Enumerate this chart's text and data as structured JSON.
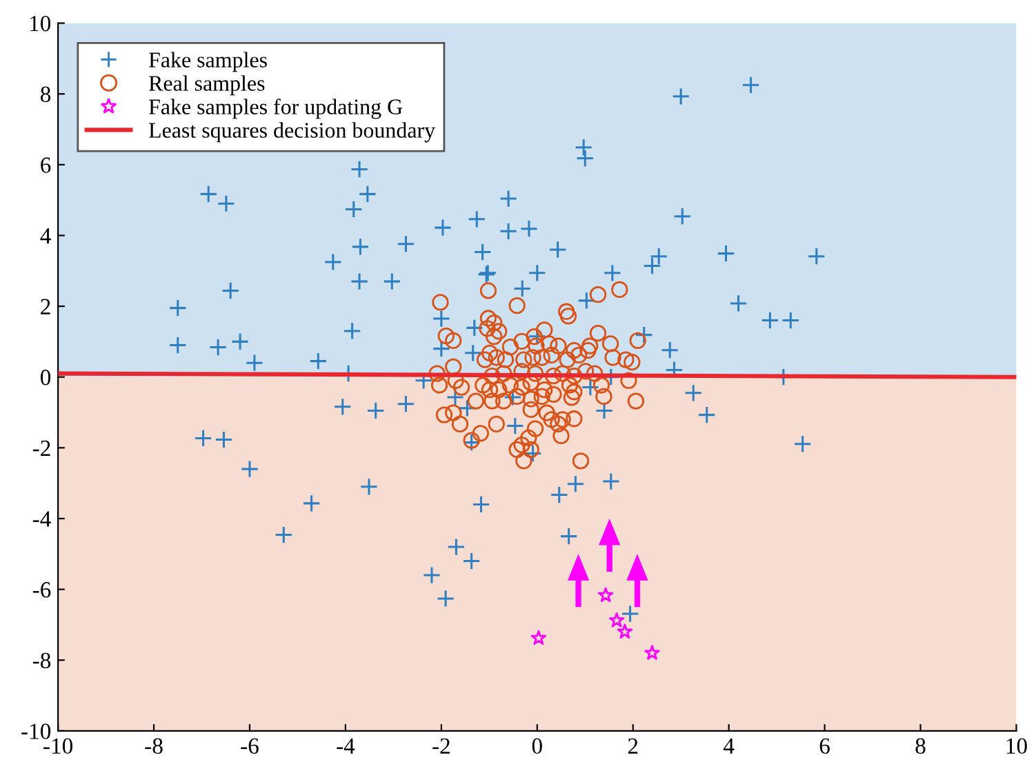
{
  "chart_data": {
    "type": "scatter",
    "xlim": [
      -10,
      10
    ],
    "ylim": [
      -10,
      10
    ],
    "xticks": [
      -10,
      -8,
      -6,
      -4,
      -2,
      0,
      2,
      4,
      6,
      8,
      10
    ],
    "yticks": [
      -10,
      -8,
      -6,
      -4,
      -2,
      0,
      2,
      4,
      6,
      8,
      10
    ],
    "grid": false,
    "legend": "top left",
    "bands": [
      {
        "axis": "y",
        "from": 0,
        "to": 10,
        "color": "#cde1f1"
      },
      {
        "axis": "y",
        "from": -10,
        "to": 0,
        "color": "#f7dcd1"
      }
    ],
    "series": [
      {
        "name": "Fake samples",
        "marker": "cross",
        "color": "#2f7fc1",
        "x": [
          -7.5,
          -7.5,
          -6.86,
          -6.49,
          -6.4,
          -6.66,
          -6.2,
          -5.9,
          -4.57,
          -4.26,
          -3.86,
          -3.71,
          -3.54,
          -3.83,
          -3.69,
          -3.71,
          -3.94,
          -4.06,
          -3.37,
          -3.51,
          -6.97,
          -6.54,
          -6.0,
          -4.71,
          -5.29,
          -2.74,
          -2.2,
          -1.91,
          -1.69,
          -1.37,
          -0.6,
          -1.97,
          -1.26,
          -0.6,
          -0.17,
          -2.74,
          -1.14,
          0.43,
          0.97,
          1.0,
          3.0,
          4.46,
          3.03,
          3.94,
          5.83,
          2.54,
          2.4,
          1.57,
          -1.03,
          0.0,
          4.2,
          4.86,
          5.29,
          5.14,
          5.54,
          3.54,
          3.26,
          2.77,
          2.86,
          -3.03,
          -1.06,
          -0.31,
          1.03,
          -2.0,
          -1.31,
          -2.0,
          -1.34,
          0.0,
          2.23,
          -2.37,
          -1.71,
          -1.46,
          -0.46,
          -1.37,
          -0.09,
          1.4,
          1.11,
          1.54,
          -1.17,
          0.46,
          0.8,
          1.54,
          -0.51,
          0.66,
          1.94
        ],
        "values": [
          1.95,
          0.9,
          5.17,
          4.9,
          2.44,
          0.84,
          1.0,
          0.4,
          0.45,
          3.25,
          1.3,
          5.87,
          5.17,
          4.74,
          3.68,
          2.7,
          0.1,
          -0.84,
          -0.95,
          -3.1,
          -1.73,
          -1.77,
          -2.6,
          -3.57,
          -4.46,
          -0.76,
          -5.6,
          -6.26,
          -4.8,
          -5.2,
          5.04,
          4.22,
          4.46,
          4.12,
          4.19,
          3.76,
          3.53,
          3.6,
          6.49,
          6.18,
          7.93,
          8.25,
          4.54,
          3.49,
          3.41,
          3.41,
          3.14,
          2.94,
          2.94,
          2.94,
          2.08,
          1.6,
          1.6,
          0.0,
          -1.89,
          -1.07,
          -0.45,
          0.76,
          0.2,
          2.7,
          2.9,
          2.5,
          2.16,
          1.65,
          1.39,
          0.8,
          0.68,
          1.15,
          1.19,
          -0.1,
          -0.57,
          -0.88,
          -1.38,
          -1.85,
          -2.16,
          -0.95,
          -0.29,
          0.0,
          -3.6,
          -3.33,
          -3.02,
          -2.95,
          -0.57,
          -4.5,
          -6.69
        ]
      },
      {
        "name": "Real samples",
        "marker": "circle",
        "color": "#d95319",
        "x": [
          -2.02,
          -1.02,
          -0.42,
          1.72,
          1.27,
          0.61,
          0.65,
          -1.02,
          -0.9,
          -0.8,
          -1.04,
          -1.9,
          -1.75,
          -0.9,
          -0.56,
          -0.32,
          -0.06,
          0.15,
          -0.02,
          0.25,
          0.44,
          0.77,
          1.1,
          1.06,
          1.27,
          1.53,
          2.1,
          1.58,
          1.85,
          1.98,
          -0.99,
          -0.85,
          -0.66,
          -1.09,
          -0.28,
          -0.09,
          0.1,
          0.3,
          0.63,
          0.87,
          -1.75,
          -2.09,
          -1.7,
          -2.04,
          -1.58,
          -1.13,
          -0.94,
          -0.7,
          -0.32,
          -0.04,
          0.34,
          0.53,
          0.77,
          1.01,
          1.2,
          1.34,
          1.91,
          0.68,
          0.77,
          -0.99,
          -0.8,
          -0.56,
          -0.32,
          -0.13,
          0.15,
          0.34,
          0.1,
          -0.13,
          -1.28,
          -0.94,
          -0.7,
          -0.42,
          1.39,
          2.06,
          0.72,
          -1.94,
          -1.75,
          -1.61,
          -0.85,
          -0.13,
          0.2,
          0.3,
          0.53,
          0.77,
          0.44,
          -0.04,
          -1.18,
          -1.37,
          -0.18,
          -0.32,
          -0.42,
          -0.13,
          -0.28,
          0.5,
          0.91
        ],
        "values": [
          2.11,
          2.44,
          2.02,
          2.47,
          2.33,
          1.85,
          1.72,
          1.66,
          1.53,
          1.29,
          1.37,
          1.16,
          1.03,
          1.14,
          0.85,
          1.01,
          1.14,
          1.33,
          0.88,
          0.94,
          0.88,
          0.75,
          0.88,
          0.75,
          1.24,
          0.94,
          1.03,
          0.55,
          0.49,
          0.42,
          0.68,
          0.55,
          0.49,
          0.49,
          0.49,
          0.55,
          0.55,
          0.62,
          0.49,
          0.62,
          0.29,
          0.1,
          -0.1,
          -0.23,
          -0.29,
          -0.23,
          0.03,
          0.1,
          0.16,
          0.1,
          0.03,
          0.1,
          0.03,
          0.16,
          0.1,
          -0.23,
          -0.1,
          -0.23,
          -0.42,
          -0.36,
          -0.36,
          -0.23,
          -0.29,
          -0.16,
          -0.36,
          -0.49,
          -0.55,
          -0.62,
          -0.68,
          -0.68,
          -0.68,
          -0.55,
          -0.55,
          -0.68,
          -0.58,
          -1.07,
          -1.01,
          -1.33,
          -1.33,
          -0.92,
          -1.01,
          -1.2,
          -1.2,
          -1.18,
          -1.33,
          -1.46,
          -1.59,
          -1.79,
          -1.72,
          -1.92,
          -2.05,
          -2.05,
          -2.37,
          -1.66,
          -2.37
        ]
      },
      {
        "name": "Fake samples for updating G",
        "marker": "star",
        "color": "#ff00ff",
        "x": [
          1.43,
          1.66,
          1.83,
          0.03,
          2.4
        ],
        "values": [
          -6.17,
          -6.88,
          -7.2,
          -7.38,
          -7.8
        ]
      },
      {
        "name": "Least squares decision boundary",
        "type": "line",
        "line_style": "solid",
        "color": "#e8282f",
        "x": [
          -10,
          10
        ],
        "values": [
          0.1,
          0.0
        ]
      }
    ]
  }
}
